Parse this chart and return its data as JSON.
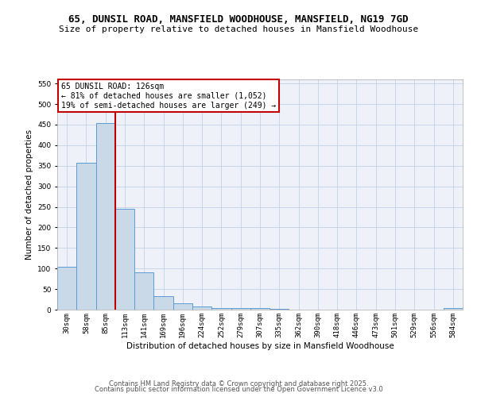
{
  "title_line1": "65, DUNSIL ROAD, MANSFIELD WOODHOUSE, MANSFIELD, NG19 7GD",
  "title_line2": "Size of property relative to detached houses in Mansfield Woodhouse",
  "xlabel": "Distribution of detached houses by size in Mansfield Woodhouse",
  "ylabel": "Number of detached properties",
  "categories": [
    "30sqm",
    "58sqm",
    "85sqm",
    "113sqm",
    "141sqm",
    "169sqm",
    "196sqm",
    "224sqm",
    "252sqm",
    "279sqm",
    "307sqm",
    "335sqm",
    "362sqm",
    "390sqm",
    "418sqm",
    "446sqm",
    "473sqm",
    "501sqm",
    "529sqm",
    "556sqm",
    "584sqm"
  ],
  "values": [
    105,
    357,
    453,
    245,
    90,
    32,
    15,
    8,
    4,
    3,
    3,
    2,
    0,
    0,
    0,
    0,
    0,
    0,
    0,
    0,
    4
  ],
  "bar_color": "#c9d9e8",
  "bar_edge_color": "#5b9bd5",
  "vline_x": 2.5,
  "vline_color": "#c00000",
  "annotation_text": "65 DUNSIL ROAD: 126sqm\n← 81% of detached houses are smaller (1,052)\n19% of semi-detached houses are larger (249) →",
  "annotation_box_color": "white",
  "annotation_box_edge_color": "#c00000",
  "ylim": [
    0,
    560
  ],
  "yticks": [
    0,
    50,
    100,
    150,
    200,
    250,
    300,
    350,
    400,
    450,
    500,
    550
  ],
  "grid_color": "#b8cce4",
  "background_color": "#eef2f8",
  "footer_line1": "Contains HM Land Registry data © Crown copyright and database right 2025.",
  "footer_line2": "Contains public sector information licensed under the Open Government Licence v3.0",
  "title_fontsize": 9,
  "subtitle_fontsize": 8,
  "axis_label_fontsize": 7.5,
  "tick_fontsize": 6.5,
  "annotation_fontsize": 7,
  "footer_fontsize": 6
}
